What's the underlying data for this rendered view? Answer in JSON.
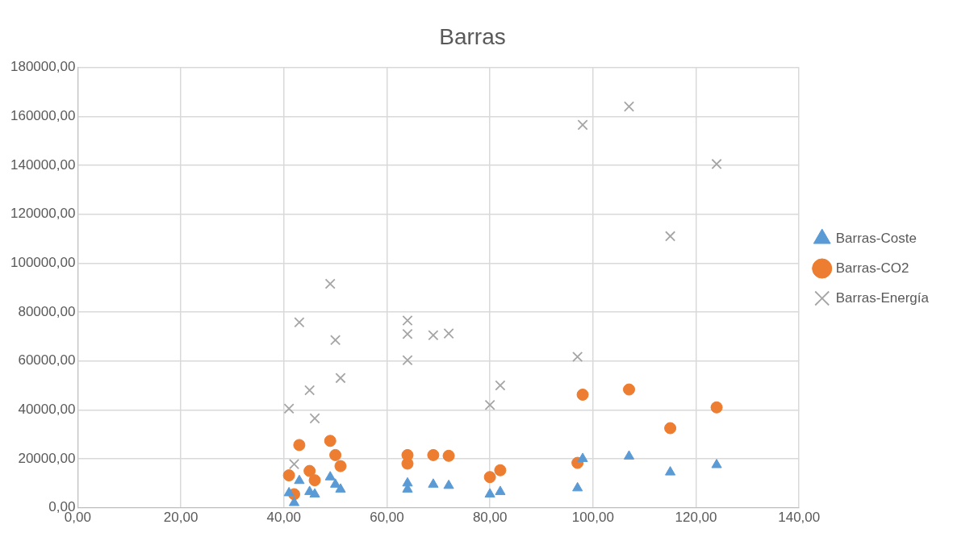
{
  "chart_data": {
    "type": "scatter",
    "title": "Barras",
    "x": [
      41,
      42,
      43,
      45,
      46,
      49,
      50,
      51,
      64,
      64,
      64,
      69,
      72,
      80,
      82,
      97,
      98,
      107,
      115,
      124
    ],
    "series": [
      {
        "name": "Barras-Coste",
        "color": "#5b9bd5",
        "marker": "triangle",
        "values": [
          6000,
          2000,
          11000,
          6500,
          5500,
          12500,
          9500,
          7500,
          10000,
          null,
          7500,
          9500,
          9000,
          5500,
          6500,
          8000,
          20000,
          21000,
          14500,
          17500
        ]
      },
      {
        "name": "Barras-CO2",
        "color": "#ed7d31",
        "marker": "circle",
        "values": [
          13200,
          5500,
          25600,
          15000,
          11200,
          27300,
          21500,
          17000,
          null,
          21500,
          18000,
          21500,
          21200,
          12500,
          15300,
          18300,
          46200,
          48300,
          32500,
          41000
        ]
      },
      {
        "name": "Barras-Energía",
        "color": "#a5a5a5",
        "marker": "cross",
        "values": [
          40500,
          17800,
          75800,
          48000,
          36500,
          91500,
          68500,
          53000,
          76500,
          71000,
          60300,
          70500,
          71200,
          42000,
          50000,
          61700,
          156500,
          164000,
          111000,
          140500
        ]
      }
    ],
    "xlim": [
      0,
      140
    ],
    "xticks": [
      {
        "value": 0,
        "label": "0,00"
      },
      {
        "value": 20,
        "label": "20,00"
      },
      {
        "value": 40,
        "label": "40,00"
      },
      {
        "value": 60,
        "label": "60,00"
      },
      {
        "value": 80,
        "label": "80,00"
      },
      {
        "value": 100,
        "label": "100,00"
      },
      {
        "value": 120,
        "label": "120,00"
      },
      {
        "value": 140,
        "label": "140,00"
      }
    ],
    "ylim": [
      0,
      180000
    ],
    "yticks": [
      {
        "value": 0,
        "label": "0,00"
      },
      {
        "value": 20000,
        "label": "20000,00"
      },
      {
        "value": 40000,
        "label": "40000,00"
      },
      {
        "value": 60000,
        "label": "60000,00"
      },
      {
        "value": 80000,
        "label": "80000,00"
      },
      {
        "value": 100000,
        "label": "100000,00"
      },
      {
        "value": 120000,
        "label": "120000,00"
      },
      {
        "value": 140000,
        "label": "140000,00"
      },
      {
        "value": 160000,
        "label": "160000,00"
      },
      {
        "value": 180000,
        "label": "180000,00"
      }
    ],
    "grid": true,
    "legend": "right"
  }
}
